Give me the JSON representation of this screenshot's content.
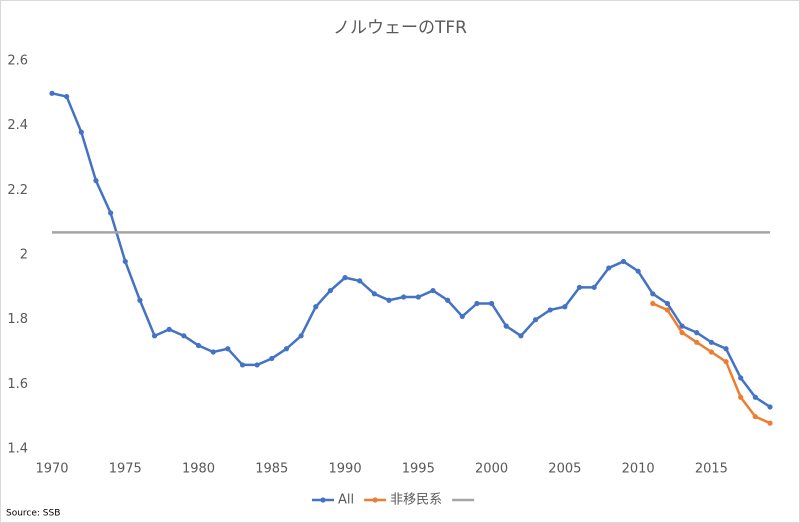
{
  "chart_data": {
    "type": "line",
    "title": "ノルウェーのTFR",
    "source": "Source: SSB",
    "x": [
      1970,
      1971,
      1972,
      1973,
      1974,
      1975,
      1976,
      1977,
      1978,
      1979,
      1980,
      1981,
      1982,
      1983,
      1984,
      1985,
      1986,
      1987,
      1988,
      1989,
      1990,
      1991,
      1992,
      1993,
      1994,
      1995,
      1996,
      1997,
      1998,
      1999,
      2000,
      2001,
      2002,
      2003,
      2004,
      2005,
      2006,
      2007,
      2008,
      2009,
      2010,
      2011,
      2012,
      2013,
      2014,
      2015,
      2016,
      2017,
      2018,
      2019
    ],
    "series": [
      {
        "name": "All",
        "color": "#4472c4",
        "marker": true,
        "values": [
          2.5,
          2.49,
          2.38,
          2.23,
          2.13,
          1.98,
          1.86,
          1.75,
          1.77,
          1.75,
          1.72,
          1.7,
          1.71,
          1.66,
          1.66,
          1.68,
          1.71,
          1.75,
          1.84,
          1.89,
          1.93,
          1.92,
          1.88,
          1.86,
          1.87,
          1.87,
          1.89,
          1.86,
          1.81,
          1.85,
          1.85,
          1.78,
          1.75,
          1.8,
          1.83,
          1.84,
          1.9,
          1.9,
          1.96,
          1.98,
          1.95,
          1.88,
          1.85,
          1.78,
          1.76,
          1.73,
          1.71,
          1.62,
          1.56,
          1.53
        ]
      },
      {
        "name": "非移民系",
        "color": "#ed7d31",
        "marker": true,
        "values": [
          null,
          null,
          null,
          null,
          null,
          null,
          null,
          null,
          null,
          null,
          null,
          null,
          null,
          null,
          null,
          null,
          null,
          null,
          null,
          null,
          null,
          null,
          null,
          null,
          null,
          null,
          null,
          null,
          null,
          null,
          null,
          null,
          null,
          null,
          null,
          null,
          null,
          null,
          null,
          null,
          null,
          1.85,
          1.83,
          1.76,
          1.73,
          1.7,
          1.67,
          1.56,
          1.5,
          1.48
        ]
      },
      {
        "color": "#a5a5a5",
        "marker": false,
        "values": [
          2.07,
          2.07,
          2.07,
          2.07,
          2.07,
          2.07,
          2.07,
          2.07,
          2.07,
          2.07,
          2.07,
          2.07,
          2.07,
          2.07,
          2.07,
          2.07,
          2.07,
          2.07,
          2.07,
          2.07,
          2.07,
          2.07,
          2.07,
          2.07,
          2.07,
          2.07,
          2.07,
          2.07,
          2.07,
          2.07,
          2.07,
          2.07,
          2.07,
          2.07,
          2.07,
          2.07,
          2.07,
          2.07,
          2.07,
          2.07,
          2.07,
          2.07,
          2.07,
          2.07,
          2.07,
          2.07,
          2.07,
          2.07,
          2.07,
          2.07
        ]
      }
    ],
    "xlim": [
      1970,
      2019
    ],
    "xticks": [
      1970,
      1975,
      1980,
      1985,
      1990,
      1995,
      2000,
      2005,
      2010,
      2015
    ],
    "ylim": [
      1.4,
      2.6
    ],
    "yticks": [
      1.4,
      1.6,
      1.8,
      2,
      2.2,
      2.4,
      2.6
    ],
    "grid": false
  }
}
